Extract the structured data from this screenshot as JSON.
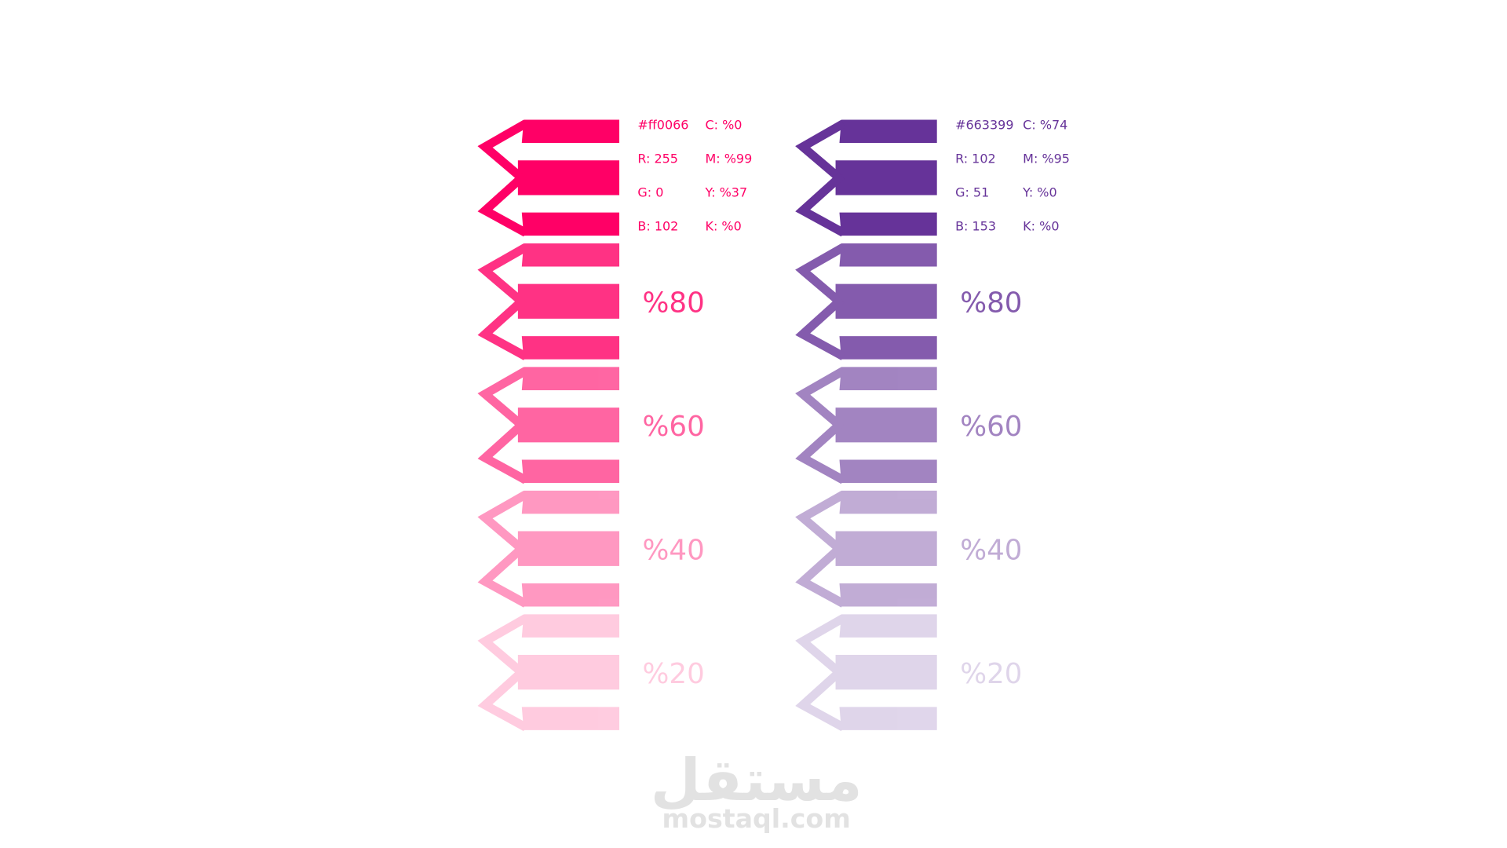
{
  "palettes": [
    {
      "hex": "#ff0066",
      "rgb": [
        "R: 255",
        "G: 0",
        "B: 102"
      ],
      "cmyk": [
        "C: %0",
        "M: %99",
        "Y: %37",
        "K: %0"
      ],
      "tints": [
        {
          "value": 80,
          "label": "%80"
        },
        {
          "value": 60,
          "label": "%60"
        },
        {
          "value": 40,
          "label": "%40"
        },
        {
          "value": 20,
          "label": "%20"
        }
      ]
    },
    {
      "hex": "#663399",
      "rgb": [
        "R: 102",
        "G: 51",
        "B: 153"
      ],
      "cmyk": [
        "C: %74",
        "M: %95",
        "Y: %0",
        "K: %0"
      ],
      "tints": [
        {
          "value": 80,
          "label": "%80"
        },
        {
          "value": 60,
          "label": "%60"
        },
        {
          "value": 40,
          "label": "%40"
        },
        {
          "value": 20,
          "label": "%20"
        }
      ]
    }
  ],
  "watermark": {
    "arabic": "مستقل",
    "latin": "mostaql.com"
  }
}
